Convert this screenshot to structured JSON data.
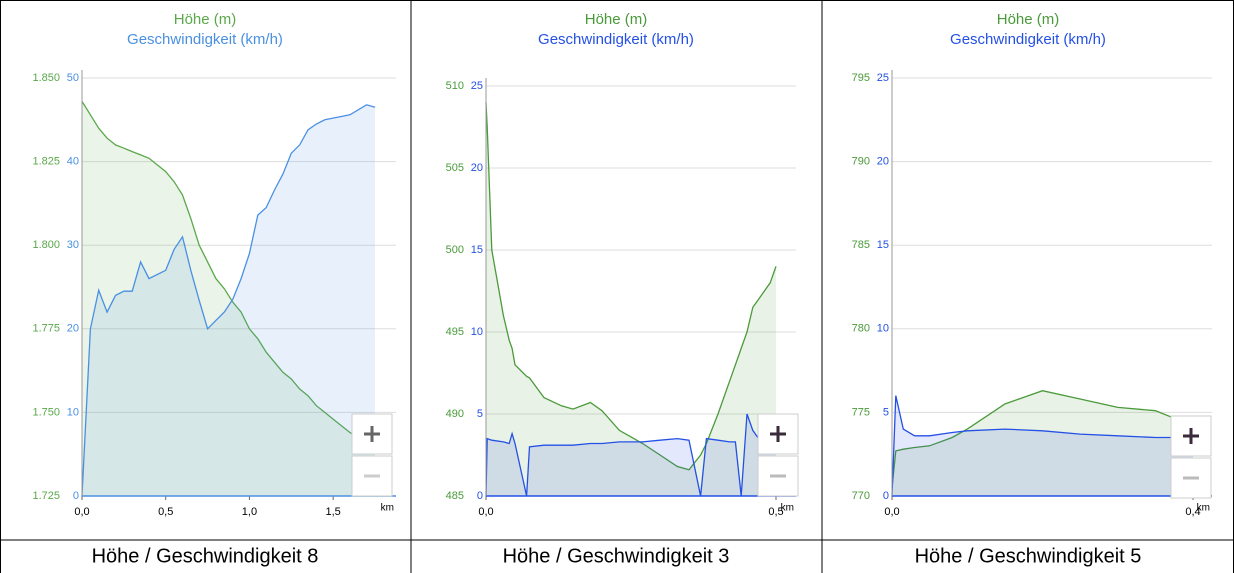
{
  "chart_data": [
    {
      "type": "line",
      "caption": "Höhe / Geschwindigkeit 8",
      "xlabel": "km",
      "x": [
        0,
        0.05,
        0.1,
        0.15,
        0.2,
        0.25,
        0.3,
        0.35,
        0.4,
        0.5,
        0.55,
        0.6,
        0.65,
        0.7,
        0.75,
        0.8,
        0.85,
        0.9,
        0.95,
        1.0,
        1.05,
        1.1,
        1.15,
        1.2,
        1.25,
        1.3,
        1.35,
        1.4,
        1.45,
        1.5,
        1.6,
        1.7,
        1.75
      ],
      "xlim": [
        0,
        1.75
      ],
      "xticks": [
        {
          "value": 0,
          "label": "0,0"
        },
        {
          "value": 0.5,
          "label": "0,5"
        },
        {
          "value": 1.0,
          "label": "1,0"
        },
        {
          "value": 1.5,
          "label": "1,5"
        }
      ],
      "ylim": [
        1725,
        1850
      ],
      "yticks": [
        {
          "value": 1725,
          "label": "1.725"
        },
        {
          "value": 1750,
          "label": "1.750"
        },
        {
          "value": 1775,
          "label": "1.775"
        },
        {
          "value": 1800,
          "label": "1.800"
        },
        {
          "value": 1825,
          "label": "1.825"
        },
        {
          "value": 1850,
          "label": "1.850"
        }
      ],
      "y2lim": [
        0,
        50
      ],
      "y2ticks": [
        0,
        10,
        20,
        30,
        40,
        50
      ],
      "grid": true,
      "series": [
        {
          "name": "Höhe (m)",
          "color": "#5aa84a",
          "axis": "y",
          "values": [
            1843,
            1839,
            1835,
            1832,
            1830,
            1829,
            1828,
            1827,
            1826,
            1822,
            1819,
            1815,
            1808,
            1800,
            1795,
            1790,
            1787,
            1783,
            1780,
            1775,
            1772,
            1768,
            1765,
            1762,
            1760,
            1757,
            1755,
            1752,
            1750,
            1748,
            1744,
            1741,
            1740
          ]
        },
        {
          "name": "Geschwindigkeit (km/h)",
          "color": "#4a90e2",
          "axis": "y2",
          "values": [
            0,
            20,
            24.6,
            22,
            24,
            24.5,
            24.5,
            28,
            26,
            27,
            29.5,
            31,
            27,
            23.4,
            20,
            21,
            22,
            23.5,
            26,
            29,
            33.6,
            34.5,
            36.6,
            38.5,
            41,
            42,
            43.8,
            44.5,
            45,
            45.2,
            45.6,
            46.8,
            46.5
          ]
        }
      ]
    },
    {
      "type": "line",
      "caption": "Höhe / Geschwindigkeit 3",
      "xlabel": "km",
      "x": [
        0,
        0.002,
        0.01,
        0.03,
        0.04,
        0.045,
        0.05,
        0.07,
        0.075,
        0.1,
        0.13,
        0.15,
        0.18,
        0.2,
        0.23,
        0.27,
        0.3,
        0.33,
        0.35,
        0.37,
        0.38,
        0.4,
        0.42,
        0.43,
        0.44,
        0.45,
        0.46,
        0.47,
        0.49,
        0.5
      ],
      "xlim": [
        0,
        0.5
      ],
      "xticks": [
        {
          "value": 0,
          "label": "0,0"
        },
        {
          "value": 0.5,
          "label": "0,5"
        }
      ],
      "ylim": [
        485,
        510
      ],
      "yticks": [
        485,
        490,
        495,
        500,
        505,
        510
      ],
      "y2lim": [
        0,
        25
      ],
      "y2ticks": [
        0,
        5,
        10,
        15,
        20,
        25
      ],
      "grid": true,
      "series": [
        {
          "name": "Höhe (m)",
          "color": "#4a9a3a",
          "axis": "y",
          "values": [
            509,
            507.5,
            500,
            496,
            494.5,
            494,
            493,
            492.3,
            492.2,
            491,
            490.5,
            490.3,
            490.7,
            490.2,
            489,
            488.2,
            487.5,
            486.8,
            486.6,
            487.5,
            488.2,
            490,
            492,
            493,
            494,
            495,
            496.5,
            497,
            498,
            499
          ]
        },
        {
          "name": "Geschwindigkeit (km/h)",
          "color": "#2450e6",
          "axis": "y2",
          "values": [
            0,
            3.5,
            3.4,
            3.3,
            3.2,
            3.8,
            3.2,
            0,
            3,
            3.1,
            3.1,
            3.1,
            3.2,
            3.2,
            3.3,
            3.3,
            3.4,
            3.5,
            3.4,
            0,
            3.5,
            3.4,
            3.3,
            3.3,
            0,
            5,
            4,
            3.5,
            3.5,
            3.5
          ]
        }
      ]
    },
    {
      "type": "line",
      "caption": "Höhe / Geschwindigkeit 5",
      "xlabel": "km",
      "x": [
        0,
        0.005,
        0.015,
        0.03,
        0.05,
        0.08,
        0.1,
        0.15,
        0.2,
        0.25,
        0.3,
        0.35,
        0.4
      ],
      "xlim": [
        0,
        0.4
      ],
      "xticks": [
        {
          "value": 0,
          "label": "0,0"
        },
        {
          "value": 0.4,
          "label": "0,4"
        }
      ],
      "ylim": [
        770,
        795
      ],
      "yticks": [
        770,
        775,
        780,
        785,
        790,
        795
      ],
      "y2lim": [
        0,
        25
      ],
      "y2ticks": [
        0,
        5,
        10,
        15,
        20,
        25
      ],
      "grid": true,
      "series": [
        {
          "name": "Höhe (m)",
          "color": "#4a9a3a",
          "axis": "y",
          "values": [
            770.5,
            772.7,
            772.8,
            772.9,
            773,
            773.5,
            774,
            775.5,
            776.3,
            775.8,
            775.3,
            775.1,
            774.2
          ]
        },
        {
          "name": "Geschwindigkeit (km/h)",
          "color": "#2450e6",
          "axis": "y2",
          "values": [
            0,
            6,
            4,
            3.6,
            3.6,
            3.8,
            3.9,
            4,
            3.9,
            3.7,
            3.6,
            3.5,
            3.5
          ]
        }
      ]
    }
  ]
}
